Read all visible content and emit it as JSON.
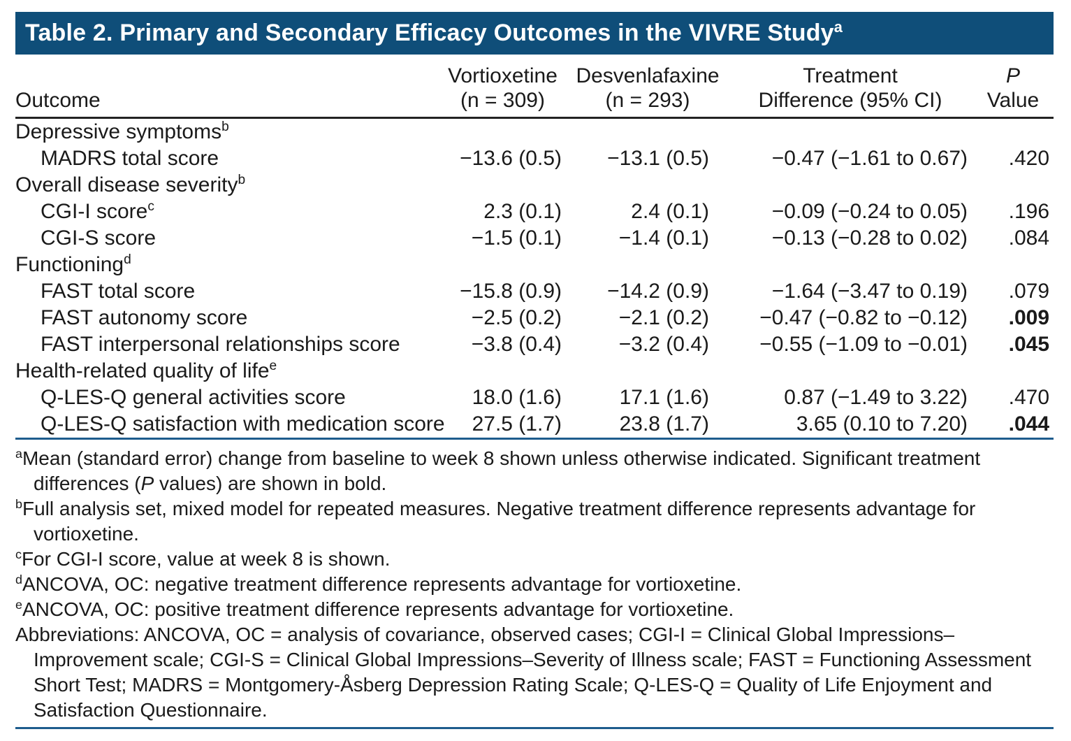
{
  "colors": {
    "title_bar_bg": "#0F4E79",
    "title_text": "#FFFFFF",
    "header_rule": "#222222",
    "blue_rule": "#1E5C8D",
    "body_text": "#1A1A1A"
  },
  "title": {
    "label": "Table 2. Primary and Secondary Efficacy Outcomes in the VIVRE Study",
    "sup": "a"
  },
  "table": {
    "header": {
      "outcome": "Outcome",
      "vort_line1": "Vortioxetine",
      "vort_line2": "(n = 309)",
      "desv_line1": "Desvenlafaxine",
      "desv_line2": "(n = 293)",
      "diff_line1": "Treatment",
      "diff_line2": "Difference (95% CI)",
      "p_line1": "P",
      "p_line2": "Value"
    },
    "rows": [
      {
        "type": "category",
        "label": "Depressive symptoms",
        "sup": "b"
      },
      {
        "type": "item",
        "label": "MADRS total score",
        "sup": "",
        "vortioxetine": "−13.6 (0.5)",
        "desvenlafaxine": "−13.1 (0.5)",
        "difference": "−0.47 (−1.61 to 0.67)",
        "p_value": ".420",
        "p_bold": false
      },
      {
        "type": "category",
        "label": "Overall disease severity",
        "sup": "b"
      },
      {
        "type": "item",
        "label": "CGI-I score",
        "sup": "c",
        "vortioxetine": "2.3 (0.1)",
        "desvenlafaxine": "2.4 (0.1)",
        "difference": "−0.09 (−0.24 to 0.05)",
        "p_value": ".196",
        "p_bold": false
      },
      {
        "type": "item",
        "label": "CGI-S score",
        "sup": "",
        "vortioxetine": "−1.5 (0.1)",
        "desvenlafaxine": "−1.4 (0.1)",
        "difference": "−0.13 (−0.28 to 0.02)",
        "p_value": ".084",
        "p_bold": false
      },
      {
        "type": "category",
        "label": "Functioning",
        "sup": "d"
      },
      {
        "type": "item",
        "label": "FAST total score",
        "sup": "",
        "vortioxetine": "−15.8 (0.9)",
        "desvenlafaxine": "−14.2 (0.9)",
        "difference": "−1.64 (−3.47 to 0.19)",
        "p_value": ".079",
        "p_bold": false
      },
      {
        "type": "item",
        "label": "FAST autonomy score",
        "sup": "",
        "vortioxetine": "−2.5 (0.2)",
        "desvenlafaxine": "−2.1 (0.2)",
        "difference": "−0.47 (−0.82 to −0.12)",
        "p_value": ".009",
        "p_bold": true
      },
      {
        "type": "item",
        "label": "FAST interpersonal relationships score",
        "sup": "",
        "vortioxetine": "−3.8 (0.4)",
        "desvenlafaxine": "−3.2 (0.4)",
        "difference": "−0.55 (−1.09 to −0.01)",
        "p_value": ".045",
        "p_bold": true
      },
      {
        "type": "category",
        "label": "Health-related quality of life",
        "sup": "e"
      },
      {
        "type": "item",
        "label": "Q-LES-Q general activities score",
        "sup": "",
        "vortioxetine": "18.0 (1.6)",
        "desvenlafaxine": "17.1 (1.6)",
        "difference": "0.87 (−1.49 to 3.22)",
        "p_value": ".470",
        "p_bold": false
      },
      {
        "type": "item",
        "label": "Q-LES-Q satisfaction with medication score",
        "sup": "",
        "vortioxetine": "27.5 (1.7)",
        "desvenlafaxine": "23.8 (1.7)",
        "difference": "3.65 (0.10 to 7.20)",
        "p_value": ".044",
        "p_bold": true
      }
    ]
  },
  "footnotes": {
    "a": {
      "sup": "a",
      "part1": "Mean (standard error) change from baseline to week 8 shown unless otherwise indicated. Significant treatment differences (",
      "italic": "P",
      "part2": " values) are shown in bold."
    },
    "b": {
      "sup": "b",
      "text": "Full analysis set, mixed model for repeated measures. Negative treatment difference represents advantage for vortioxetine."
    },
    "c": {
      "sup": "c",
      "text": "For CGI-I score, value at week 8 is shown."
    },
    "d": {
      "sup": "d",
      "text": "ANCOVA, OC: negative treatment difference represents advantage for vortioxetine."
    },
    "e": {
      "sup": "e",
      "text": "ANCOVA, OC: positive treatment difference represents advantage for vortioxetine."
    },
    "abbreviations": "Abbreviations: ANCOVA, OC = analysis of covariance, observed cases; CGI-I = Clinical Global Impressions–Improvement scale; CGI-S = Clinical Global Impressions–Severity of Illness scale; FAST = Functioning Assessment Short Test; MADRS = Montgomery-Åsberg Depression Rating Scale; Q-LES-Q = Quality of Life Enjoyment and Satisfaction Questionnaire."
  }
}
